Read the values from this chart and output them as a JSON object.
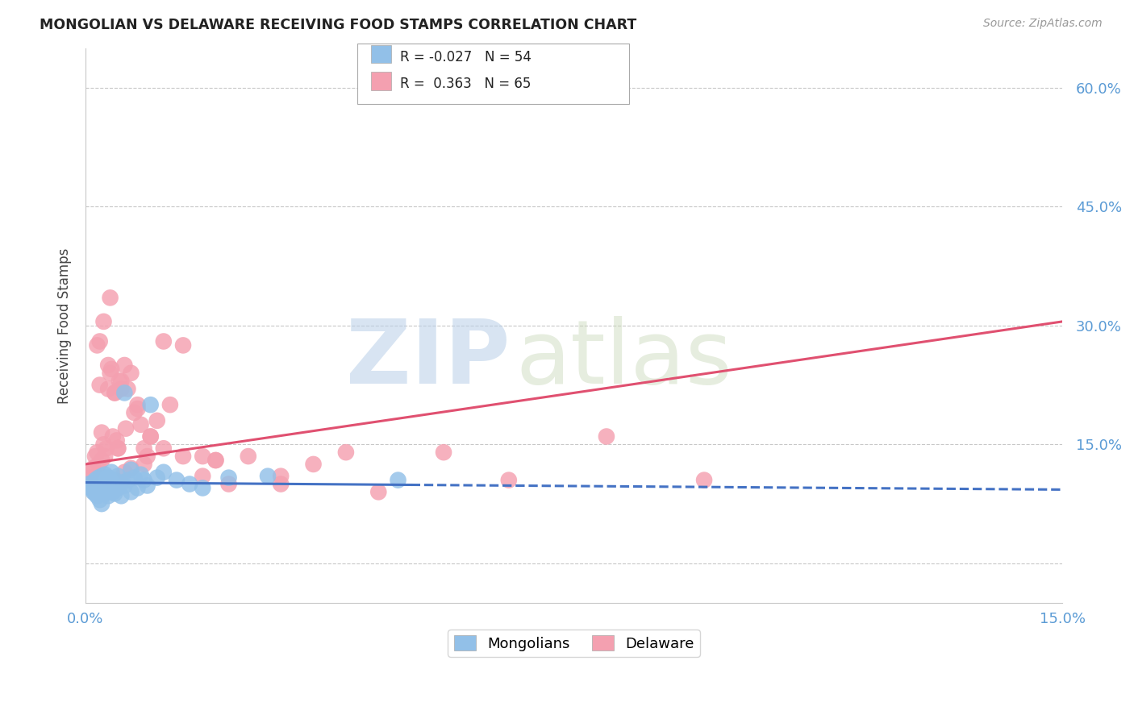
{
  "title": "MONGOLIAN VS DELAWARE RECEIVING FOOD STAMPS CORRELATION CHART",
  "source": "Source: ZipAtlas.com",
  "ylabel": "Receiving Food Stamps",
  "xlim": [
    0.0,
    15.0
  ],
  "ylim": [
    -5.0,
    65.0
  ],
  "yticks": [
    0.0,
    15.0,
    30.0,
    45.0,
    60.0
  ],
  "ytick_labels": [
    "",
    "15.0%",
    "30.0%",
    "45.0%",
    "60.0%"
  ],
  "mongolian_color": "#92c0e8",
  "delaware_color": "#f4a0b0",
  "trend_mongolian_color": "#4472c4",
  "trend_delaware_color": "#e05070",
  "legend_r_mongolian": "R = -0.027",
  "legend_n_mongolian": "N = 54",
  "legend_r_delaware": "R =  0.363",
  "legend_n_delaware": "N = 65",
  "watermark_zip": "ZIP",
  "watermark_atlas": "atlas",
  "background_color": "#ffffff",
  "grid_color": "#c8c8c8",
  "axis_color": "#c8c8c8",
  "tick_label_color": "#5b9bd5",
  "mongol_trend_x0": 0.0,
  "mongol_trend_y0": 10.2,
  "mongol_trend_x1": 15.0,
  "mongol_trend_y1": 9.3,
  "mongol_solid_end": 5.0,
  "delaware_trend_x0": 0.0,
  "delaware_trend_y0": 12.5,
  "delaware_trend_x1": 15.0,
  "delaware_trend_y1": 30.5,
  "mongolian_x": [
    0.05,
    0.08,
    0.1,
    0.12,
    0.12,
    0.15,
    0.15,
    0.18,
    0.18,
    0.2,
    0.2,
    0.22,
    0.22,
    0.25,
    0.25,
    0.25,
    0.28,
    0.28,
    0.3,
    0.3,
    0.3,
    0.32,
    0.35,
    0.35,
    0.38,
    0.4,
    0.4,
    0.42,
    0.45,
    0.45,
    0.48,
    0.5,
    0.5,
    0.55,
    0.55,
    0.6,
    0.6,
    0.65,
    0.7,
    0.7,
    0.75,
    0.8,
    0.85,
    0.9,
    0.95,
    1.0,
    1.1,
    1.2,
    1.4,
    1.6,
    1.8,
    2.2,
    2.8,
    4.8
  ],
  "mongolian_y": [
    10.0,
    9.5,
    9.8,
    10.2,
    9.0,
    10.5,
    8.8,
    9.2,
    8.5,
    10.8,
    9.5,
    10.0,
    8.0,
    11.0,
    9.8,
    7.5,
    10.5,
    9.0,
    11.2,
    10.0,
    8.8,
    9.5,
    10.8,
    8.5,
    9.2,
    11.5,
    10.0,
    9.0,
    10.5,
    8.8,
    9.8,
    11.0,
    9.5,
    10.2,
    8.5,
    21.5,
    9.8,
    10.5,
    11.8,
    9.0,
    10.8,
    9.5,
    11.2,
    10.5,
    9.8,
    20.0,
    10.8,
    11.5,
    10.5,
    10.0,
    9.5,
    10.8,
    11.0,
    10.5
  ],
  "delaware_x": [
    0.08,
    0.1,
    0.12,
    0.15,
    0.18,
    0.2,
    0.22,
    0.25,
    0.25,
    0.28,
    0.3,
    0.32,
    0.35,
    0.38,
    0.4,
    0.42,
    0.45,
    0.48,
    0.5,
    0.52,
    0.55,
    0.6,
    0.65,
    0.7,
    0.75,
    0.8,
    0.85,
    0.9,
    0.95,
    1.0,
    1.1,
    1.2,
    1.3,
    1.5,
    1.8,
    2.0,
    2.2,
    2.5,
    3.0,
    3.5,
    4.0,
    4.5,
    5.5,
    6.5,
    8.0,
    9.5,
    0.18,
    0.28,
    0.38,
    0.5,
    0.6,
    0.7,
    0.9,
    1.2,
    1.8,
    3.0,
    0.22,
    0.35,
    0.55,
    0.8,
    1.0,
    1.5,
    2.0,
    0.45,
    0.62
  ],
  "delaware_y": [
    10.8,
    11.5,
    12.0,
    13.5,
    14.0,
    12.5,
    22.5,
    16.5,
    13.0,
    15.0,
    13.5,
    14.5,
    25.0,
    24.0,
    24.5,
    16.0,
    21.5,
    15.5,
    14.5,
    23.0,
    22.0,
    25.0,
    22.0,
    24.0,
    19.0,
    20.0,
    17.5,
    14.5,
    13.5,
    16.0,
    18.0,
    28.0,
    20.0,
    13.5,
    13.5,
    13.0,
    10.0,
    13.5,
    11.0,
    12.5,
    14.0,
    9.0,
    14.0,
    10.5,
    16.0,
    10.5,
    27.5,
    30.5,
    33.5,
    14.5,
    11.5,
    12.0,
    12.5,
    14.5,
    11.0,
    10.0,
    28.0,
    22.0,
    23.0,
    19.5,
    16.0,
    27.5,
    13.0,
    21.5,
    17.0
  ]
}
